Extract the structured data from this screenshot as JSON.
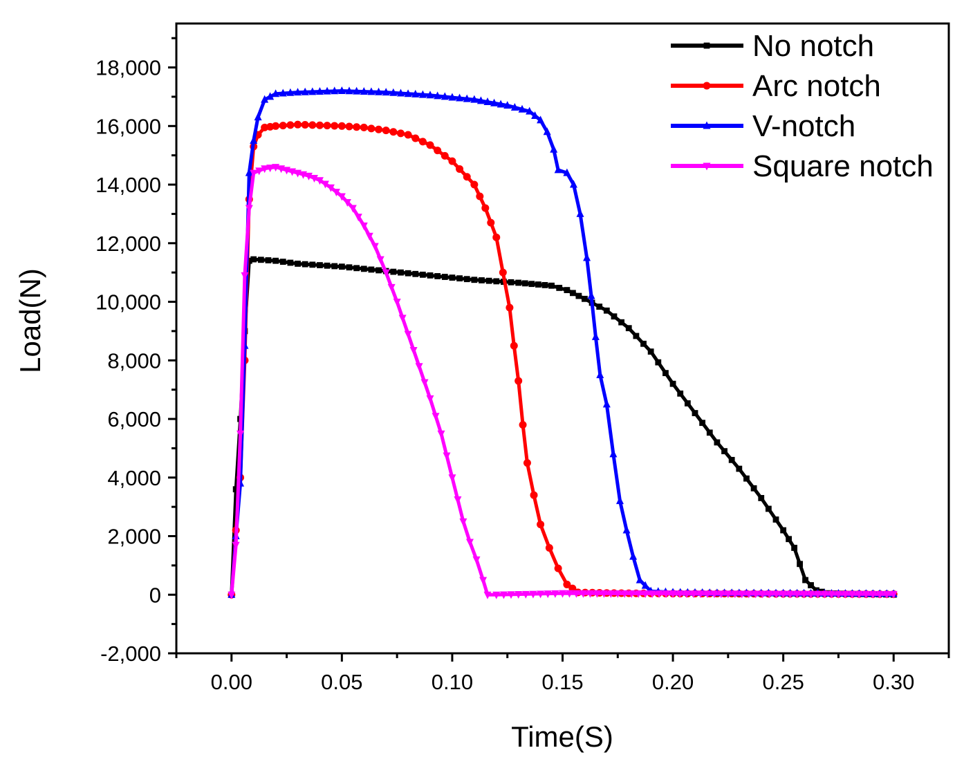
{
  "chart_data": {
    "type": "line",
    "title": "",
    "xlabel": "Time(S)",
    "ylabel": "Load(N)",
    "xlim": [
      -0.025,
      0.325
    ],
    "ylim": [
      -2000,
      19500
    ],
    "x_ticks": [
      0.0,
      0.05,
      0.1,
      0.15,
      0.2,
      0.25,
      0.3
    ],
    "x_tick_labels": [
      "0.00",
      "0.05",
      "0.10",
      "0.15",
      "0.20",
      "0.25",
      "0.30"
    ],
    "y_ticks": [
      -2000,
      0,
      2000,
      4000,
      6000,
      8000,
      10000,
      12000,
      14000,
      16000,
      18000
    ],
    "y_tick_labels": [
      "-2,000",
      "0",
      "2,000",
      "4,000",
      "6,000",
      "8,000",
      "10,000",
      "12,000",
      "14,000",
      "16,000",
      "18,000"
    ],
    "grid": false,
    "legend_position": "top-right",
    "series": [
      {
        "name": "No notch",
        "color": "#000000",
        "marker": "square",
        "points": [
          [
            0,
            0
          ],
          [
            0.002,
            3600
          ],
          [
            0.004,
            6000
          ],
          [
            0.006,
            9000
          ],
          [
            0.008,
            11400
          ],
          [
            0.01,
            11450
          ],
          [
            0.02,
            11400
          ],
          [
            0.03,
            11300
          ],
          [
            0.05,
            11200
          ],
          [
            0.07,
            11050
          ],
          [
            0.09,
            10900
          ],
          [
            0.11,
            10750
          ],
          [
            0.13,
            10650
          ],
          [
            0.145,
            10550
          ],
          [
            0.152,
            10400
          ],
          [
            0.16,
            10100
          ],
          [
            0.17,
            9700
          ],
          [
            0.18,
            9100
          ],
          [
            0.19,
            8300
          ],
          [
            0.2,
            7200
          ],
          [
            0.21,
            6200
          ],
          [
            0.22,
            5200
          ],
          [
            0.23,
            4300
          ],
          [
            0.24,
            3300
          ],
          [
            0.25,
            2200
          ],
          [
            0.255,
            1600
          ],
          [
            0.26,
            500
          ],
          [
            0.265,
            150
          ],
          [
            0.27,
            50
          ],
          [
            0.28,
            30
          ],
          [
            0.29,
            20
          ],
          [
            0.3,
            0
          ]
        ]
      },
      {
        "name": "Arc notch",
        "color": "#ff0000",
        "marker": "circle",
        "points": [
          [
            0,
            0
          ],
          [
            0.002,
            2200
          ],
          [
            0.004,
            4000
          ],
          [
            0.006,
            8000
          ],
          [
            0.008,
            13500
          ],
          [
            0.01,
            15300
          ],
          [
            0.012,
            15700
          ],
          [
            0.015,
            15950
          ],
          [
            0.02,
            16000
          ],
          [
            0.03,
            16050
          ],
          [
            0.05,
            16000
          ],
          [
            0.06,
            15950
          ],
          [
            0.07,
            15850
          ],
          [
            0.08,
            15700
          ],
          [
            0.09,
            15350
          ],
          [
            0.1,
            14800
          ],
          [
            0.11,
            14000
          ],
          [
            0.115,
            13200
          ],
          [
            0.12,
            12200
          ],
          [
            0.123,
            11000
          ],
          [
            0.126,
            9800
          ],
          [
            0.128,
            8500
          ],
          [
            0.13,
            7300
          ],
          [
            0.132,
            5800
          ],
          [
            0.134,
            4500
          ],
          [
            0.137,
            3400
          ],
          [
            0.14,
            2400
          ],
          [
            0.144,
            1600
          ],
          [
            0.148,
            900
          ],
          [
            0.152,
            350
          ],
          [
            0.157,
            80
          ],
          [
            0.17,
            60
          ],
          [
            0.18,
            50
          ],
          [
            0.2,
            40
          ],
          [
            0.22,
            40
          ],
          [
            0.25,
            30
          ],
          [
            0.3,
            20
          ]
        ]
      },
      {
        "name": "V-notch",
        "color": "#0000ff",
        "marker": "triangle-up",
        "points": [
          [
            0,
            0
          ],
          [
            0.002,
            2000
          ],
          [
            0.004,
            3800
          ],
          [
            0.006,
            8500
          ],
          [
            0.008,
            14400
          ],
          [
            0.01,
            15500
          ],
          [
            0.012,
            16300
          ],
          [
            0.015,
            16900
          ],
          [
            0.02,
            17100
          ],
          [
            0.03,
            17150
          ],
          [
            0.05,
            17200
          ],
          [
            0.07,
            17150
          ],
          [
            0.09,
            17050
          ],
          [
            0.11,
            16900
          ],
          [
            0.125,
            16700
          ],
          [
            0.135,
            16500
          ],
          [
            0.14,
            16200
          ],
          [
            0.143,
            15800
          ],
          [
            0.146,
            15200
          ],
          [
            0.148,
            14500
          ],
          [
            0.152,
            14400
          ],
          [
            0.155,
            14000
          ],
          [
            0.158,
            13000
          ],
          [
            0.161,
            11500
          ],
          [
            0.163,
            10200
          ],
          [
            0.165,
            8800
          ],
          [
            0.167,
            7500
          ],
          [
            0.17,
            6500
          ],
          [
            0.173,
            4800
          ],
          [
            0.176,
            3200
          ],
          [
            0.179,
            2200
          ],
          [
            0.182,
            1300
          ],
          [
            0.185,
            500
          ],
          [
            0.19,
            120
          ],
          [
            0.2,
            80
          ],
          [
            0.22,
            60
          ],
          [
            0.25,
            50
          ],
          [
            0.3,
            30
          ]
        ]
      },
      {
        "name": "Square notch",
        "color": "#ff00ff",
        "marker": "triangle-down",
        "points": [
          [
            0,
            0
          ],
          [
            0.002,
            1700
          ],
          [
            0.004,
            5500
          ],
          [
            0.006,
            10900
          ],
          [
            0.008,
            13200
          ],
          [
            0.01,
            14400
          ],
          [
            0.015,
            14550
          ],
          [
            0.02,
            14600
          ],
          [
            0.025,
            14500
          ],
          [
            0.03,
            14400
          ],
          [
            0.035,
            14300
          ],
          [
            0.04,
            14150
          ],
          [
            0.045,
            13900
          ],
          [
            0.05,
            13600
          ],
          [
            0.055,
            13200
          ],
          [
            0.06,
            12600
          ],
          [
            0.065,
            11900
          ],
          [
            0.07,
            11000
          ],
          [
            0.075,
            10000
          ],
          [
            0.08,
            8900
          ],
          [
            0.085,
            7800
          ],
          [
            0.09,
            6700
          ],
          [
            0.095,
            5500
          ],
          [
            0.1,
            4000
          ],
          [
            0.105,
            2500
          ],
          [
            0.108,
            1800
          ],
          [
            0.111,
            1200
          ],
          [
            0.114,
            500
          ],
          [
            0.116,
            0
          ],
          [
            0.12,
            0
          ],
          [
            0.15,
            50
          ],
          [
            0.2,
            40
          ],
          [
            0.25,
            30
          ],
          [
            0.3,
            20
          ]
        ]
      }
    ]
  }
}
